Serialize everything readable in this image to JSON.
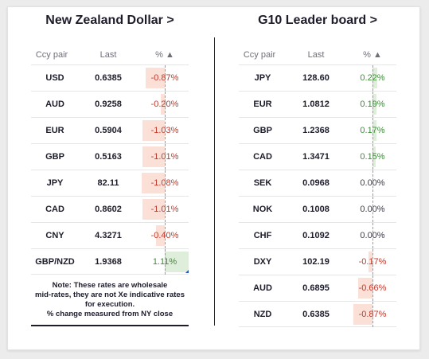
{
  "left": {
    "title": "New Zealand Dollar >",
    "headers": {
      "pair": "Ccy pair",
      "last": "Last",
      "pct": "% ▲"
    },
    "rows": [
      {
        "pair": "USD",
        "last": "0.6385",
        "pct": "-0.87%",
        "value": -0.87
      },
      {
        "pair": "AUD",
        "last": "0.9258",
        "pct": "-0.20%",
        "value": -0.2
      },
      {
        "pair": "EUR",
        "last": "0.5904",
        "pct": "-1.03%",
        "value": -1.03
      },
      {
        "pair": "GBP",
        "last": "0.5163",
        "pct": "-1.01%",
        "value": -1.01
      },
      {
        "pair": "JPY",
        "last": "82.11",
        "pct": "-1.08%",
        "value": -1.08
      },
      {
        "pair": "CAD",
        "last": "0.8602",
        "pct": "-1.01%",
        "value": -1.01
      },
      {
        "pair": "CNY",
        "last": "4.3271",
        "pct": "-0.40%",
        "value": -0.4
      },
      {
        "pair": "GBP/NZD",
        "last": "1.9368",
        "pct": "1.11%",
        "value": 1.11
      }
    ],
    "note_lines": [
      "Note: These rates are wholesale",
      "mid-rates, they are not Xe indicative rates",
      "for execution.",
      "% change measured from NY close"
    ]
  },
  "right": {
    "title": "G10 Leader board >",
    "headers": {
      "pair": "Ccy pair",
      "last": "Last",
      "pct": "% ▲"
    },
    "rows": [
      {
        "pair": "JPY",
        "last": "128.60",
        "pct": "0.22%",
        "value": 0.22
      },
      {
        "pair": "EUR",
        "last": "1.0812",
        "pct": "0.19%",
        "value": 0.19
      },
      {
        "pair": "GBP",
        "last": "1.2368",
        "pct": "0.17%",
        "value": 0.17
      },
      {
        "pair": "CAD",
        "last": "1.3471",
        "pct": "0.15%",
        "value": 0.15
      },
      {
        "pair": "SEK",
        "last": "0.0968",
        "pct": "0.00%",
        "value": 0.0
      },
      {
        "pair": "NOK",
        "last": "0.1008",
        "pct": "0.00%",
        "value": 0.0
      },
      {
        "pair": "CHF",
        "last": "0.1092",
        "pct": "0.00%",
        "value": 0.0
      },
      {
        "pair": "DXY",
        "last": "102.19",
        "pct": "-0.17%",
        "value": -0.17
      },
      {
        "pair": "AUD",
        "last": "0.6895",
        "pct": "-0.66%",
        "value": -0.66
      },
      {
        "pair": "NZD",
        "last": "0.6385",
        "pct": "-0.87%",
        "value": -0.87
      }
    ]
  },
  "colors": {
    "negative_text": "#c0392b",
    "positive_text": "#3f8a3a",
    "negative_bar": "#fbe0d7",
    "positive_bar": "#dfeedb"
  }
}
